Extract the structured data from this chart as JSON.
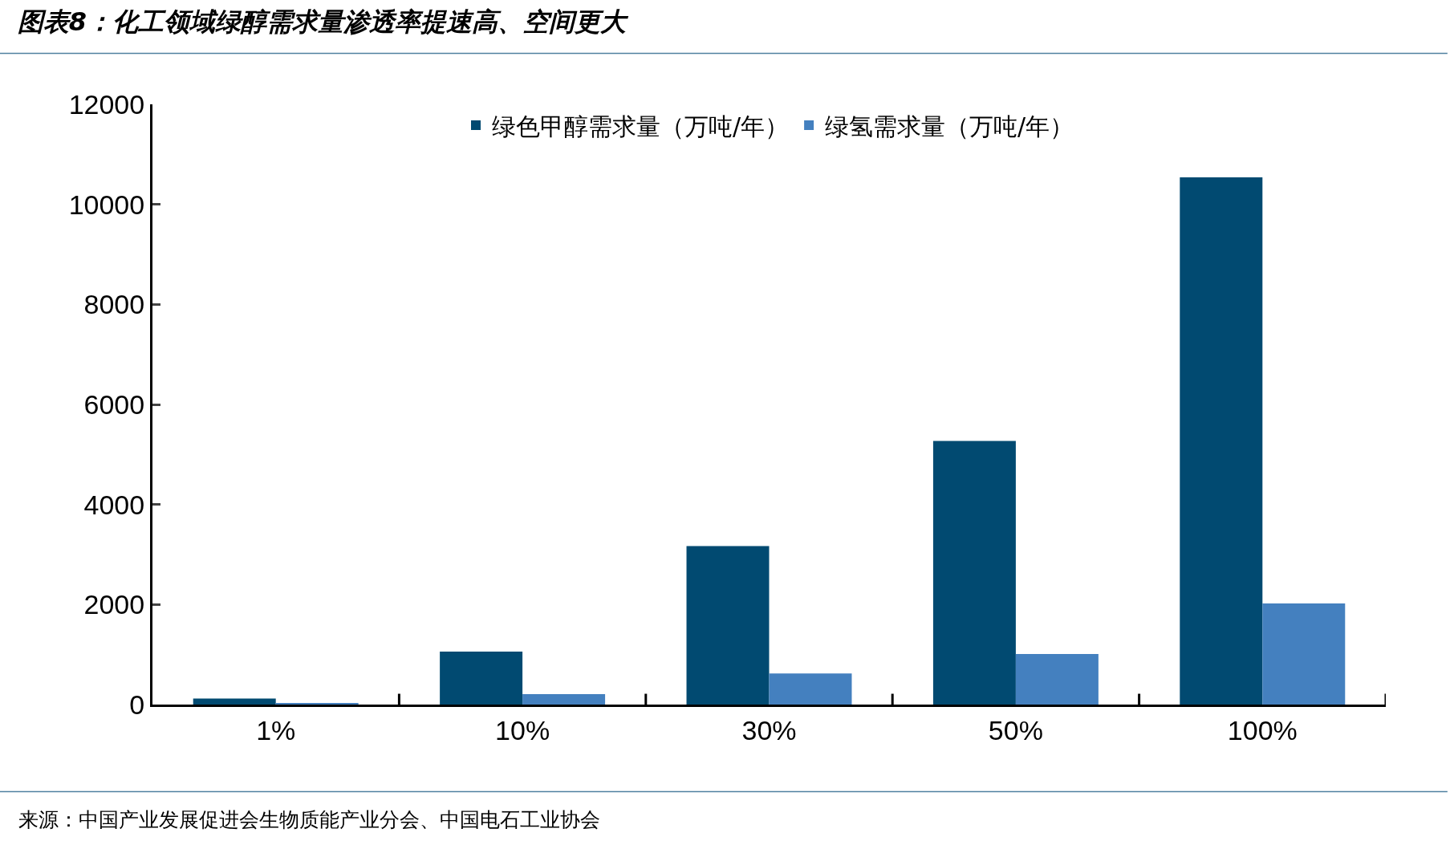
{
  "chart_data": {
    "type": "bar",
    "title": "图表8：化工领域绿醇需求量渗透率提速高、空间更大",
    "categories": [
      "1%",
      "10%",
      "30%",
      "50%",
      "100%"
    ],
    "series": [
      {
        "name": "绿色甲醇需求量（万吨/年）",
        "color": "#014a71",
        "values": [
          120,
          1060,
          3170,
          5270,
          10540
        ]
      },
      {
        "name": "绿氢需求量（万吨/年）",
        "color": "#4480bf",
        "values": [
          20,
          210,
          620,
          1010,
          2020
        ]
      }
    ],
    "ylim": [
      0,
      12000
    ],
    "yticks": [
      0,
      2000,
      4000,
      6000,
      8000,
      10000,
      12000
    ],
    "grid": false,
    "legend": "top",
    "annotations": [
      "来源：中国产业发展促进会生物质能产业分会、中国电石工业协会"
    ]
  }
}
